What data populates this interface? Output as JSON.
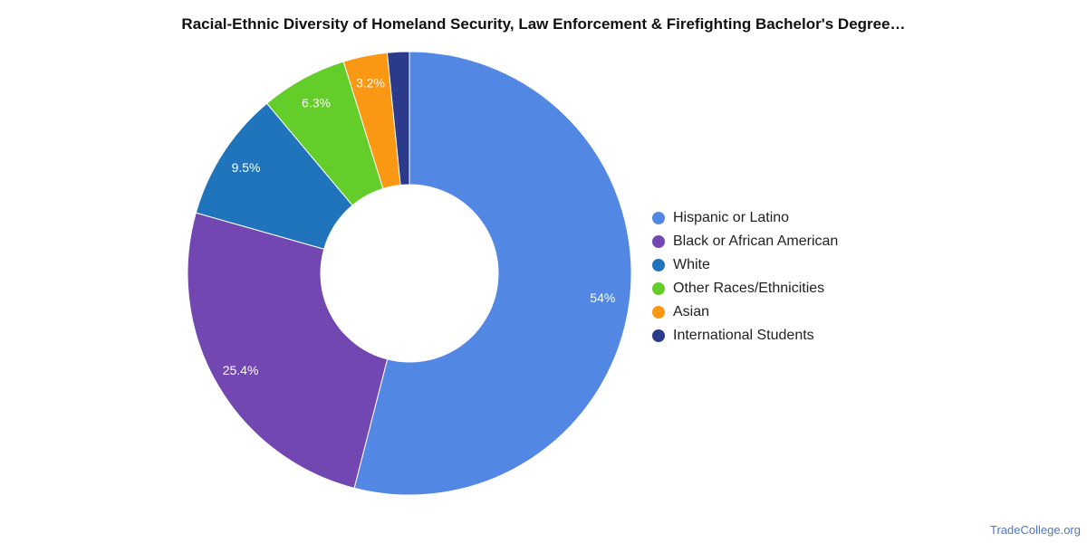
{
  "chart_data": {
    "type": "pie",
    "title": "Racial-Ethnic Diversity of Homeland Security, Law Enforcement & Firefighting Bachelor's Degree…",
    "legend_position": "right",
    "slices": [
      {
        "name": "Hispanic or Latino",
        "value": 54.0,
        "label": "54%",
        "color": "#5288e3"
      },
      {
        "name": "Black or African American",
        "value": 25.4,
        "label": "25.4%",
        "color": "#7347b1"
      },
      {
        "name": "White",
        "value": 9.5,
        "label": "9.5%",
        "color": "#1f74bc"
      },
      {
        "name": "Other Races/Ethnicities",
        "value": 6.3,
        "label": "6.3%",
        "color": "#63cd29"
      },
      {
        "name": "Asian",
        "value": 3.2,
        "label": "3.2%",
        "color": "#fa9713"
      },
      {
        "name": "International Students",
        "value": 1.6,
        "label": "",
        "color": "#2b3a8a"
      }
    ]
  },
  "watermark": "TradeCollege.org"
}
